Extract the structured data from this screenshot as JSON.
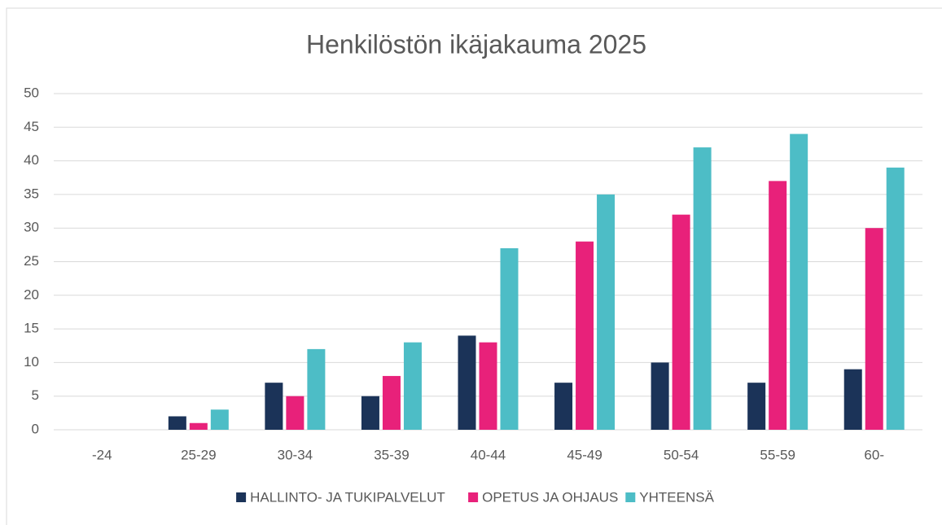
{
  "chart_data": {
    "type": "bar",
    "title": "Henkilöstön ikäjakauma 2025",
    "categories": [
      "-24",
      "25-29",
      "30-34",
      "35-39",
      "40-44",
      "45-49",
      "50-54",
      "55-59",
      "60-"
    ],
    "series": [
      {
        "name": "HALLINTO- JA TUKIPALVELUT",
        "color": "#1b3358",
        "values": [
          0,
          2,
          7,
          5,
          14,
          7,
          10,
          7,
          9
        ]
      },
      {
        "name": "OPETUS JA OHJAUS",
        "color": "#e8217a",
        "values": [
          0,
          1,
          5,
          8,
          13,
          28,
          32,
          37,
          30
        ]
      },
      {
        "name": "YHTEENSÄ",
        "color": "#4dbdc6",
        "values": [
          0,
          3,
          12,
          13,
          27,
          35,
          42,
          44,
          39
        ]
      }
    ],
    "ylim": [
      0,
      50
    ],
    "yticks": [
      0,
      5,
      10,
      15,
      20,
      25,
      30,
      35,
      40,
      45,
      50
    ],
    "grid": true,
    "legend": "bottom"
  }
}
